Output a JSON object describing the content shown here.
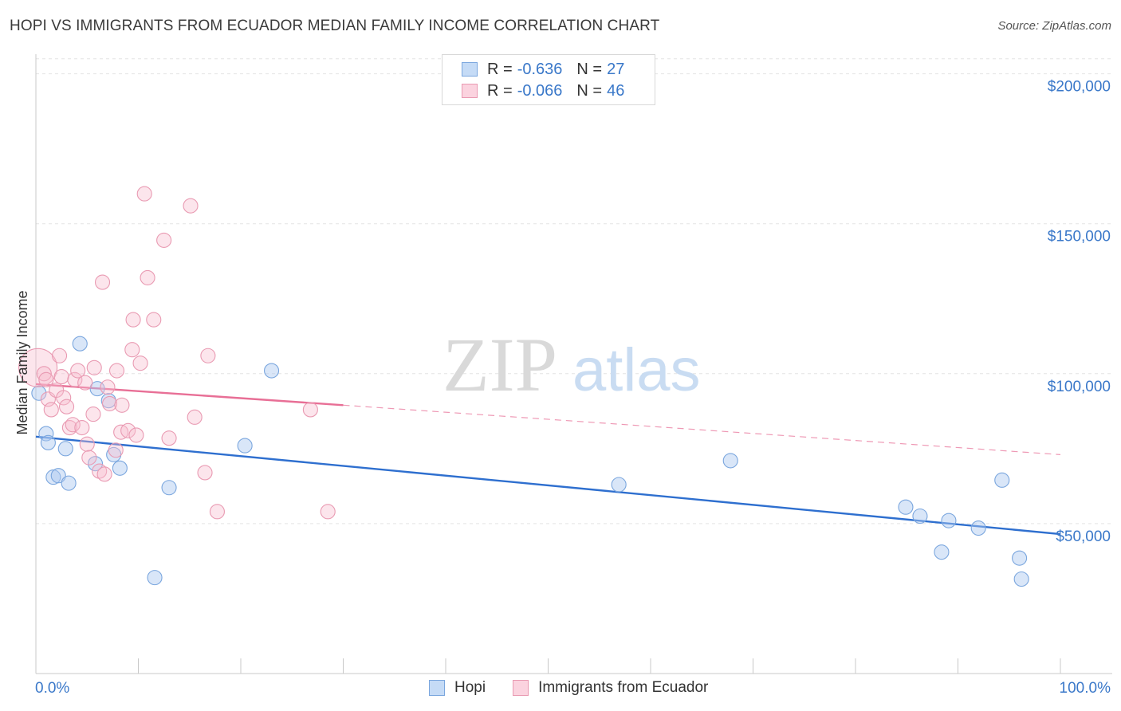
{
  "header": {
    "title": "HOPI VS IMMIGRANTS FROM ECUADOR MEDIAN FAMILY INCOME CORRELATION CHART",
    "source": "Source: ZipAtlas.com"
  },
  "legend": {
    "rows": [
      {
        "r_label": "R =",
        "r_value": "-0.636",
        "n_label": "N =",
        "n_value": "27",
        "color": "#a9c8f0",
        "border": "#6a9ad8"
      },
      {
        "r_label": "R =",
        "r_value": "-0.066",
        "n_label": "N =",
        "n_value": "46",
        "color": "#f7c6d4",
        "border": "#e890aa"
      }
    ]
  },
  "bottom_legend": {
    "items": [
      {
        "label": "Hopi",
        "color": "#c5dbf6",
        "border": "#7aa6de"
      },
      {
        "label": "Immigrants from Ecuador",
        "color": "#fbd3df",
        "border": "#e99ab2"
      }
    ]
  },
  "watermark": {
    "zip": "ZIP",
    "atlas": "atlas"
  },
  "chart_data": {
    "type": "scatter",
    "title": "HOPI VS IMMIGRANTS FROM ECUADOR MEDIAN FAMILY INCOME CORRELATION CHART",
    "xlabel": "",
    "ylabel": "Median Family Income",
    "xlim": [
      0,
      100
    ],
    "ylim": [
      0,
      210000
    ],
    "x_tick_labels": [
      "0.0%",
      "100.0%"
    ],
    "y_ticks": [
      50000,
      100000,
      150000,
      200000
    ],
    "y_tick_labels": [
      "$50,000",
      "$100,000",
      "$150,000",
      "$200,000"
    ],
    "grid": true,
    "colors": {
      "hopi": "#2e6fcf",
      "ecuador": "#e86f96"
    },
    "series": [
      {
        "name": "Hopi",
        "points": [
          [
            0.3,
            93500
          ],
          [
            1.0,
            80000
          ],
          [
            1.2,
            77000
          ],
          [
            1.7,
            65500
          ],
          [
            2.2,
            66000
          ],
          [
            2.9,
            75000
          ],
          [
            3.2,
            63500
          ],
          [
            4.3,
            110000
          ],
          [
            7.1,
            91000
          ],
          [
            5.8,
            70000
          ],
          [
            6.0,
            95000
          ],
          [
            7.6,
            73000
          ],
          [
            8.2,
            68500
          ],
          [
            11.6,
            32000
          ],
          [
            13.0,
            62000
          ],
          [
            20.4,
            76000
          ],
          [
            23.0,
            101000
          ],
          [
            56.9,
            63000
          ],
          [
            67.8,
            71000
          ],
          [
            84.9,
            55500
          ],
          [
            86.3,
            52500
          ],
          [
            88.4,
            40500
          ],
          [
            89.1,
            51000
          ],
          [
            92.0,
            48500
          ],
          [
            94.3,
            64500
          ],
          [
            96.0,
            38500
          ],
          [
            96.2,
            31500
          ]
        ],
        "trend": {
          "x": [
            0,
            100
          ],
          "y": [
            79000,
            46500
          ]
        }
      },
      {
        "name": "Immigrants from Ecuador",
        "points": [
          [
            0.2,
            102000
          ],
          [
            0.8,
            100000
          ],
          [
            1.0,
            98000
          ],
          [
            1.2,
            91500
          ],
          [
            1.5,
            88000
          ],
          [
            2.0,
            94500
          ],
          [
            2.3,
            106000
          ],
          [
            2.5,
            99000
          ],
          [
            2.7,
            92000
          ],
          [
            3.0,
            89000
          ],
          [
            3.3,
            82000
          ],
          [
            3.6,
            83000
          ],
          [
            3.8,
            98000
          ],
          [
            4.1,
            101000
          ],
          [
            4.5,
            82000
          ],
          [
            4.8,
            97000
          ],
          [
            5.0,
            76500
          ],
          [
            5.2,
            72000
          ],
          [
            5.6,
            86500
          ],
          [
            5.7,
            102000
          ],
          [
            6.2,
            67500
          ],
          [
            6.5,
            130500
          ],
          [
            6.7,
            66500
          ],
          [
            7.0,
            95500
          ],
          [
            7.2,
            90000
          ],
          [
            7.8,
            74500
          ],
          [
            7.9,
            101000
          ],
          [
            8.3,
            80500
          ],
          [
            8.4,
            89500
          ],
          [
            9.0,
            81000
          ],
          [
            9.4,
            108000
          ],
          [
            9.5,
            118000
          ],
          [
            9.8,
            79500
          ],
          [
            10.2,
            103500
          ],
          [
            10.6,
            160000
          ],
          [
            10.9,
            132000
          ],
          [
            11.5,
            118000
          ],
          [
            12.5,
            144500
          ],
          [
            13.0,
            78500
          ],
          [
            15.1,
            156000
          ],
          [
            15.5,
            85500
          ],
          [
            16.5,
            67000
          ],
          [
            16.8,
            106000
          ],
          [
            17.7,
            54000
          ],
          [
            26.8,
            88000
          ],
          [
            28.5,
            54000
          ]
        ],
        "trend": {
          "x": [
            0,
            30
          ],
          "y": [
            96500,
            89500
          ]
        },
        "trend_dashed": {
          "x": [
            30,
            100
          ],
          "y": [
            89500,
            73000
          ]
        }
      }
    ]
  }
}
